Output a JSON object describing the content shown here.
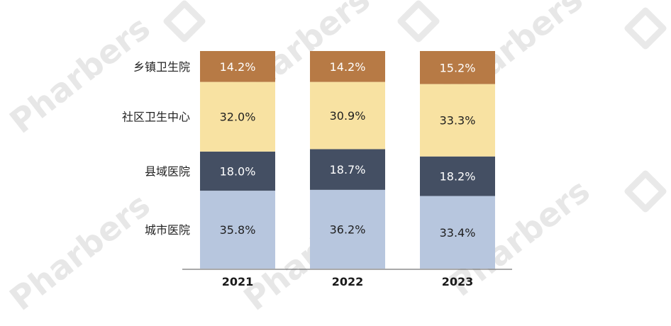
{
  "chart_data": {
    "type": "bar",
    "stacked": true,
    "percent": true,
    "categories": [
      "2021",
      "2022",
      "2023"
    ],
    "series": [
      {
        "name": "城市医院",
        "values": [
          35.8,
          36.2,
          33.4
        ],
        "color": "#b7c6de",
        "label_color": "#1f1f1f"
      },
      {
        "name": "县域医院",
        "values": [
          18.0,
          18.7,
          18.2
        ],
        "color": "#444f63",
        "label_color": "#ffffff"
      },
      {
        "name": "社区卫生中心",
        "values": [
          32.0,
          30.9,
          33.3
        ],
        "color": "#f8e2a2",
        "label_color": "#1f1f1f"
      },
      {
        "name": "乡镇卫生院",
        "values": [
          14.2,
          14.2,
          15.2
        ],
        "color": "#b77a45",
        "label_color": "#ffffff"
      }
    ],
    "value_suffix": "%",
    "legend": "left, aligned with segments of first bar",
    "grid": false,
    "ylim": [
      0,
      100
    ]
  },
  "watermark": {
    "text": "Pharbers"
  }
}
